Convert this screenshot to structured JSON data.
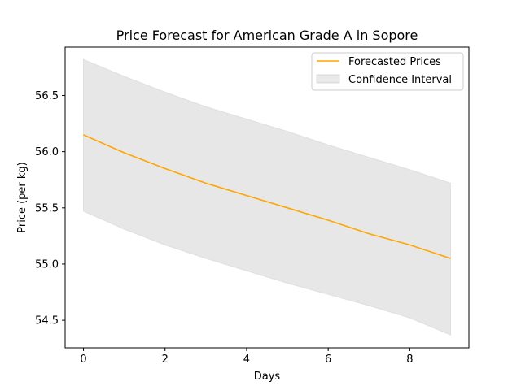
{
  "chart_data": {
    "type": "line",
    "title": "Price Forecast for American Grade A in Sopore",
    "xlabel": "Days",
    "ylabel": "Price (per kg)",
    "xlim": [
      -0.45,
      9.45
    ],
    "ylim": [
      54.255,
      56.93
    ],
    "x_ticks": [
      0,
      2,
      4,
      6,
      8
    ],
    "y_ticks": [
      54.5,
      55.0,
      55.5,
      56.0,
      56.5
    ],
    "x_tick_labels": [
      "0",
      "2",
      "4",
      "6",
      "8"
    ],
    "y_tick_labels": [
      "54.5",
      "55.0",
      "55.5",
      "56.0",
      "56.5"
    ],
    "grid": false,
    "legend_position": "top-right",
    "x": [
      0,
      1,
      2,
      3,
      4,
      5,
      6,
      7,
      8,
      9
    ],
    "series": [
      {
        "name": "Forecasted Prices",
        "kind": "line",
        "color": "#ffa500",
        "values": [
          56.15,
          55.99,
          55.85,
          55.72,
          55.61,
          55.5,
          55.39,
          55.27,
          55.17,
          55.05
        ]
      },
      {
        "name": "Confidence Interval",
        "kind": "band",
        "color": "#d3d3d3",
        "lower": [
          55.47,
          55.31,
          55.17,
          55.05,
          54.94,
          54.83,
          54.73,
          54.63,
          54.52,
          54.37
        ],
        "upper": [
          56.82,
          56.67,
          56.53,
          56.4,
          56.29,
          56.18,
          56.06,
          55.95,
          55.84,
          55.72
        ]
      }
    ]
  }
}
